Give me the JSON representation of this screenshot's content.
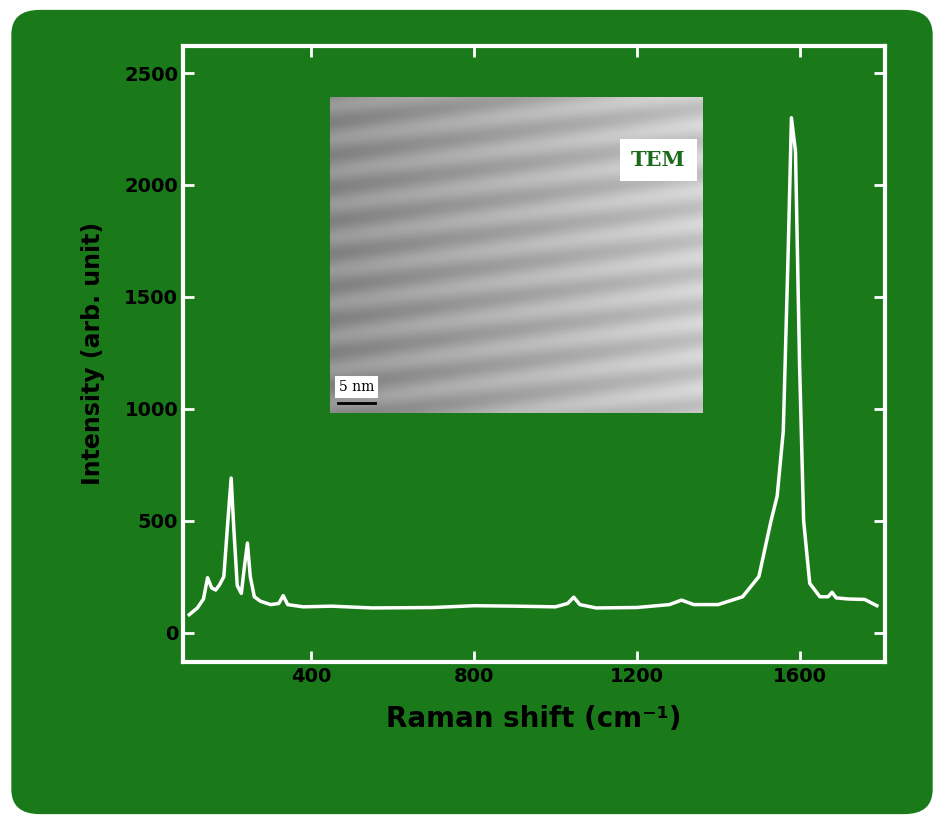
{
  "chart_data": {
    "type": "line",
    "xlabel": "Raman shift (cm⁻¹)",
    "ylabel": "Intensity (arb. unit)",
    "x": [
      100,
      120,
      135,
      145,
      155,
      165,
      175,
      185,
      195,
      203,
      210,
      218,
      228,
      236,
      243,
      250,
      260,
      275,
      300,
      320,
      331,
      342,
      380,
      450,
      550,
      700,
      800,
      900,
      1000,
      1030,
      1045,
      1060,
      1100,
      1200,
      1280,
      1310,
      1340,
      1400,
      1460,
      1500,
      1530,
      1545,
      1560,
      1572,
      1580,
      1590,
      1600,
      1610,
      1625,
      1650,
      1670,
      1680,
      1690,
      1720,
      1760,
      1790
    ],
    "values": [
      80,
      110,
      150,
      245,
      200,
      190,
      215,
      250,
      500,
      690,
      450,
      210,
      175,
      300,
      400,
      250,
      160,
      140,
      125,
      130,
      165,
      125,
      115,
      118,
      110,
      112,
      120,
      118,
      115,
      130,
      158,
      125,
      110,
      112,
      125,
      145,
      125,
      125,
      160,
      250,
      500,
      610,
      900,
      1700,
      2300,
      2150,
      1200,
      500,
      220,
      160,
      160,
      180,
      155,
      150,
      148,
      120
    ],
    "color": "#ffffff",
    "xlim": [
      85,
      1810
    ],
    "ylim": [
      -130,
      2620
    ],
    "xticks": [
      400,
      800,
      1200,
      1600
    ],
    "yticks": [
      0,
      500,
      1000,
      1500,
      2000,
      2500
    ],
    "annotations": [
      "TEM",
      "5 nm"
    ]
  }
}
